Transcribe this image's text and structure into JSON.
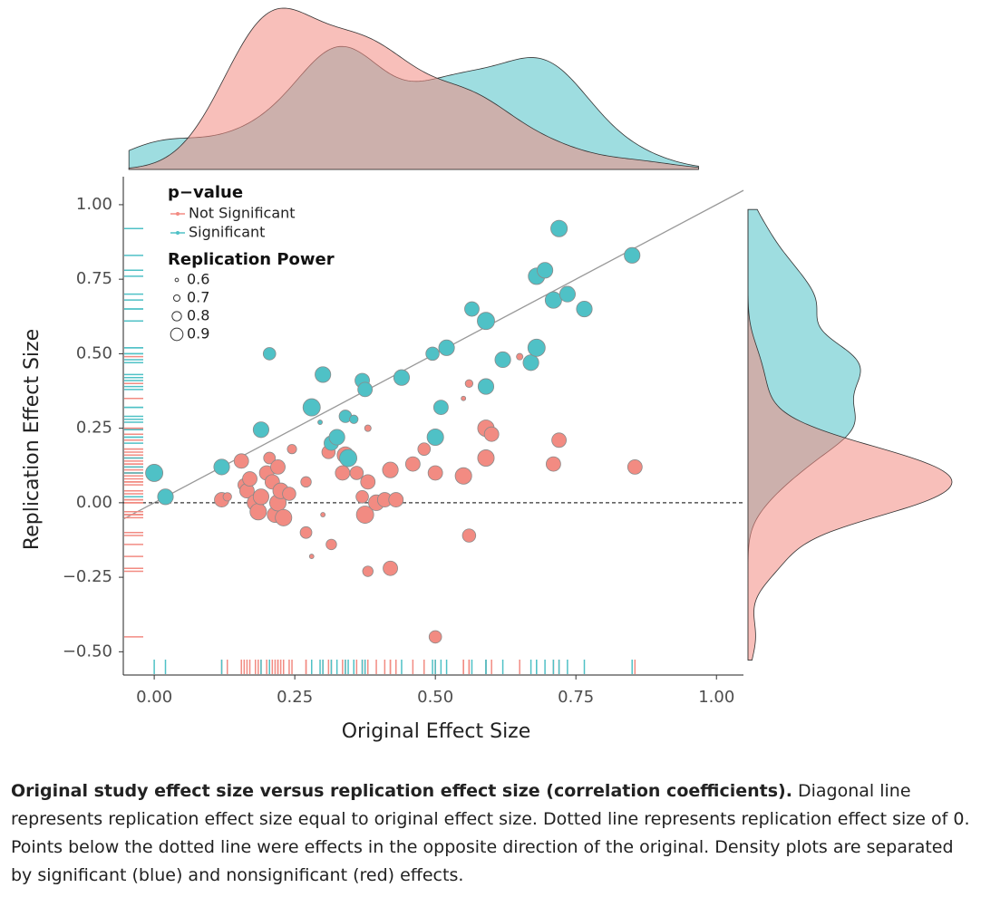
{
  "chart_data": {
    "type": "scatter",
    "x_label": "Original Effect Size",
    "y_label": "Replication Effect Size",
    "xlim": [
      -0.055,
      1.048
    ],
    "ylim": [
      -0.578,
      1.094
    ],
    "xticks": [
      {
        "value": 0,
        "label": "0.00"
      },
      {
        "value": 0.25,
        "label": "0.25"
      },
      {
        "value": 0.5,
        "label": "0.50"
      },
      {
        "value": 0.75,
        "label": "0.75"
      },
      {
        "value": 1,
        "label": "1.00"
      }
    ],
    "yticks": [
      {
        "value": -0.5,
        "label": "−0.50"
      },
      {
        "value": -0.25,
        "label": "−0.25"
      },
      {
        "value": 0,
        "label": "0.00"
      },
      {
        "value": 0.25,
        "label": "0.25"
      },
      {
        "value": 0.5,
        "label": "0.50"
      },
      {
        "value": 0.75,
        "label": "0.75"
      },
      {
        "value": 1,
        "label": "1.00"
      }
    ],
    "hline": 0,
    "diagonal": true,
    "rug": true,
    "marginal_density": true,
    "legend_title": "p−value",
    "size_legend_title": "Replication Power",
    "size_legend": [
      0.6,
      0.7,
      0.8,
      0.9
    ],
    "series": [
      {
        "name": "Not Significant",
        "color": "#f28b82",
        "x": [
          0.12,
          0.13,
          0.155,
          0.16,
          0.165,
          0.17,
          0.18,
          0.185,
          0.19,
          0.2,
          0.205,
          0.21,
          0.215,
          0.22,
          0.22,
          0.225,
          0.23,
          0.24,
          0.245,
          0.27,
          0.27,
          0.28,
          0.3,
          0.31,
          0.315,
          0.335,
          0.34,
          0.36,
          0.37,
          0.375,
          0.38,
          0.38,
          0.38,
          0.395,
          0.41,
          0.42,
          0.42,
          0.43,
          0.46,
          0.48,
          0.5,
          0.5,
          0.55,
          0.56,
          0.55,
          0.56,
          0.59,
          0.59,
          0.6,
          0.65,
          0.71,
          0.72,
          0.855
        ],
        "values": [
          0.01,
          0.02,
          0.14,
          0.06,
          0.04,
          0.08,
          0.0,
          -0.03,
          0.02,
          0.1,
          0.15,
          0.07,
          -0.04,
          0.0,
          0.12,
          0.04,
          -0.05,
          0.03,
          0.18,
          0.07,
          -0.1,
          -0.18,
          -0.04,
          0.17,
          -0.14,
          0.1,
          0.16,
          0.1,
          0.02,
          -0.04,
          0.07,
          0.25,
          -0.23,
          0.0,
          0.01,
          0.11,
          -0.22,
          0.01,
          0.13,
          0.18,
          0.1,
          -0.45,
          0.35,
          0.4,
          0.09,
          -0.11,
          0.25,
          0.15,
          0.23,
          0.49,
          0.13,
          0.21,
          0.12
        ],
        "size": [
          0.85,
          0.7,
          0.85,
          0.8,
          0.85,
          0.85,
          0.9,
          0.9,
          0.88,
          0.85,
          0.78,
          0.85,
          0.88,
          0.9,
          0.85,
          0.88,
          0.9,
          0.82,
          0.72,
          0.75,
          0.78,
          0.6,
          0.6,
          0.82,
          0.75,
          0.85,
          0.9,
          0.82,
          0.8,
          0.92,
          0.85,
          0.65,
          0.75,
          0.88,
          0.85,
          0.88,
          0.85,
          0.85,
          0.85,
          0.8,
          0.85,
          0.8,
          0.6,
          0.68,
          0.9,
          0.82,
          0.9,
          0.9,
          0.85,
          0.65,
          0.85,
          0.85,
          0.85
        ]
      },
      {
        "name": "Significant",
        "color": "#4fc1c6",
        "x": [
          0.0,
          0.02,
          0.12,
          0.19,
          0.205,
          0.28,
          0.295,
          0.3,
          0.315,
          0.325,
          0.34,
          0.345,
          0.355,
          0.37,
          0.375,
          0.44,
          0.495,
          0.5,
          0.51,
          0.52,
          0.565,
          0.59,
          0.59,
          0.62,
          0.67,
          0.68,
          0.68,
          0.695,
          0.71,
          0.72,
          0.735,
          0.765,
          0.85
        ],
        "values": [
          0.1,
          0.02,
          0.12,
          0.245,
          0.5,
          0.32,
          0.27,
          0.43,
          0.2,
          0.22,
          0.29,
          0.15,
          0.28,
          0.41,
          0.38,
          0.42,
          0.5,
          0.22,
          0.32,
          0.52,
          0.65,
          0.61,
          0.39,
          0.48,
          0.47,
          0.52,
          0.76,
          0.78,
          0.68,
          0.92,
          0.7,
          0.65,
          0.83
        ],
        "size": [
          0.92,
          0.88,
          0.88,
          0.88,
          0.8,
          0.92,
          0.6,
          0.88,
          0.85,
          0.88,
          0.8,
          0.92,
          0.7,
          0.85,
          0.85,
          0.88,
          0.82,
          0.9,
          0.85,
          0.88,
          0.85,
          0.92,
          0.88,
          0.88,
          0.88,
          0.92,
          0.9,
          0.88,
          0.9,
          0.9,
          0.88,
          0.88,
          0.88
        ]
      }
    ]
  },
  "caption": {
    "bold": "Original study effect size versus replication effect size (correlation coefficients).",
    "text": " Diagonal line represents replication effect size equal to original effect size. Dotted line represents replication effect size of 0. Points below the dotted line were effects in the opposite direction of the original. Density plots are separated by significant (blue) and nonsignificant (red) effects."
  }
}
